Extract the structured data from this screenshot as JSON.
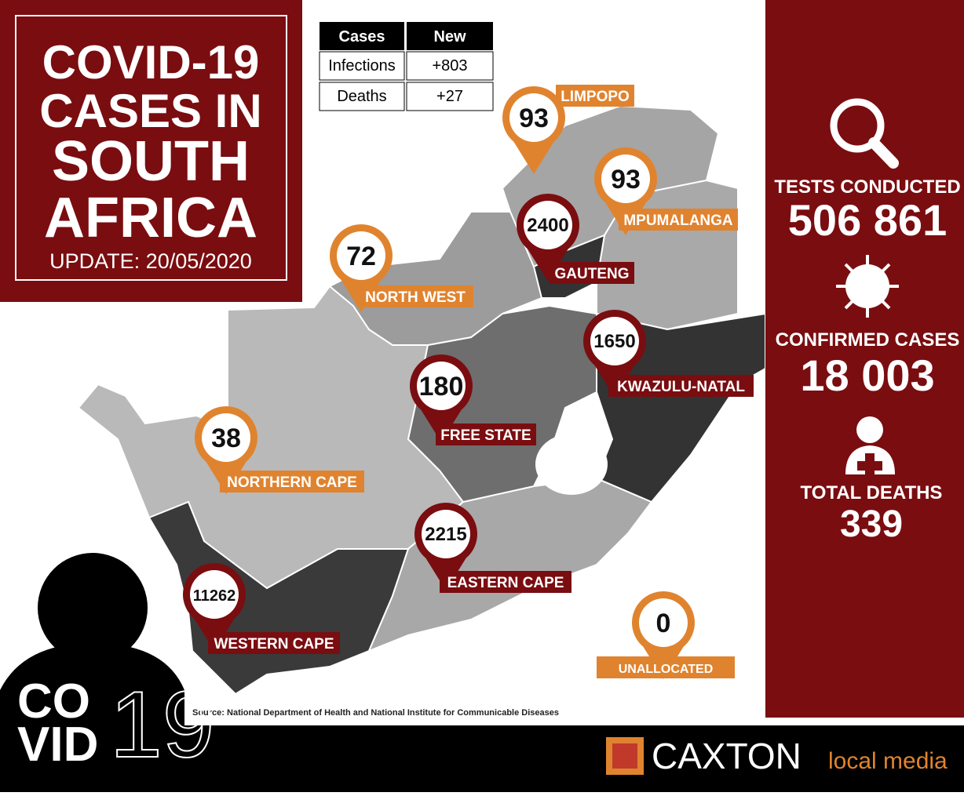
{
  "header": {
    "title_lines": [
      "COVID-19",
      "CASES IN",
      "SOUTH",
      "AFRICA"
    ],
    "update": "UPDATE: 20/05/2020"
  },
  "table": {
    "header": [
      "Cases",
      "New"
    ],
    "rows": [
      [
        "Infections",
        "+803"
      ],
      [
        "Deaths",
        "+27"
      ]
    ]
  },
  "provinces": [
    {
      "name": "LIMPOPO",
      "cases": 93,
      "color": "#e0832f"
    },
    {
      "name": "MPUMALANGA",
      "cases": 93,
      "color": "#e0832f"
    },
    {
      "name": "GAUTENG",
      "cases": 2400,
      "color": "#7a0d10"
    },
    {
      "name": "NORTH WEST",
      "cases": 72,
      "color": "#e0832f"
    },
    {
      "name": "KWAZULU-NATAL",
      "cases": 1650,
      "color": "#7a0d10"
    },
    {
      "name": "FREE STATE",
      "cases": 180,
      "color": "#7a0d10"
    },
    {
      "name": "NORTHERN CAPE",
      "cases": 38,
      "color": "#e0832f"
    },
    {
      "name": "EASTERN CAPE",
      "cases": 2215,
      "color": "#7a0d10"
    },
    {
      "name": "WESTERN CAPE",
      "cases": 11262,
      "color": "#7a0d10"
    },
    {
      "name": "UNALLOCATED",
      "cases": 0,
      "color": "#e0832f"
    }
  ],
  "stats": [
    {
      "label": "TESTS CONDUCTED",
      "value": "506 861"
    },
    {
      "label": "CONFIRMED CASES",
      "value": "18 003"
    },
    {
      "label": "TOTAL DEATHS",
      "value": "339"
    }
  ],
  "source": "Source: National Department of Health and National Institute for Communicable Diseases",
  "covid_logo": {
    "line1": "CO",
    "line2": "VID",
    "number": "19"
  },
  "brand": {
    "name": "CAXTON",
    "tagline": "local media"
  }
}
